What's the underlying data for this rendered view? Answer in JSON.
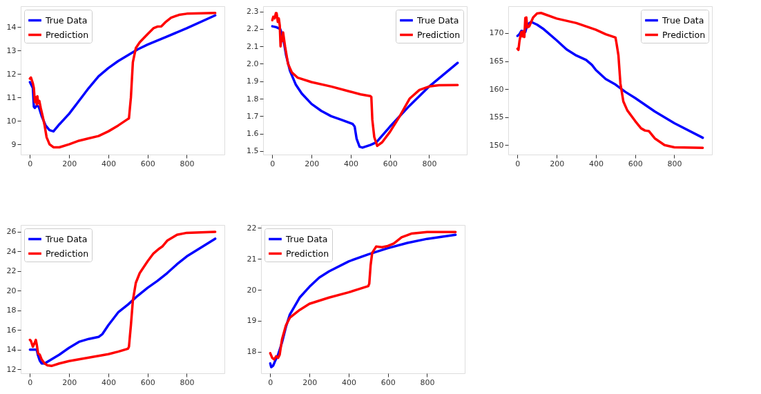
{
  "chart_data": [
    {
      "type": "line",
      "xlim": [
        -47,
        992
      ],
      "xticks": [
        0,
        200,
        400,
        600,
        800
      ],
      "ylim": [
        8.56,
        14.89
      ],
      "yticks": [
        9,
        10,
        11,
        12,
        13,
        14
      ],
      "grid": false,
      "legend": "top left",
      "marker": "none",
      "line_style": "solid",
      "series": [
        {
          "name": "True Data",
          "color": "#0000ff",
          "x": [
            0,
            15,
            20,
            25,
            35,
            45,
            60,
            80,
            100,
            120,
            150,
            200,
            250,
            300,
            350,
            400,
            450,
            500,
            550,
            600,
            700,
            800,
            945
          ],
          "values": [
            11.65,
            11.4,
            10.6,
            10.55,
            10.65,
            10.6,
            10.2,
            9.8,
            9.6,
            9.55,
            9.85,
            10.3,
            10.85,
            11.4,
            11.9,
            12.25,
            12.55,
            12.8,
            13.05,
            13.25,
            13.6,
            13.95,
            14.5
          ]
        },
        {
          "name": "Prediction",
          "color": "#ff0000",
          "x": [
            0,
            5,
            15,
            20,
            25,
            30,
            35,
            38,
            42,
            48,
            55,
            65,
            75,
            85,
            100,
            120,
            150,
            200,
            250,
            300,
            350,
            400,
            450,
            500,
            505,
            515,
            525,
            540,
            560,
            600,
            630,
            650,
            670,
            690,
            720,
            760,
            800,
            945
          ],
          "values": [
            11.8,
            11.85,
            11.6,
            11.4,
            10.8,
            11.0,
            10.7,
            11.05,
            10.75,
            10.85,
            10.55,
            10.2,
            9.8,
            9.3,
            9.0,
            8.87,
            8.87,
            9.0,
            9.15,
            9.25,
            9.35,
            9.55,
            9.8,
            10.08,
            10.1,
            11.0,
            12.5,
            13.1,
            13.35,
            13.7,
            13.95,
            14.02,
            14.03,
            14.2,
            14.4,
            14.52,
            14.57,
            14.6
          ]
        }
      ]
    },
    {
      "type": "line",
      "xlim": [
        -47,
        992
      ],
      "xticks": [
        0,
        200,
        400,
        600,
        800
      ],
      "ylim": [
        1.48,
        2.33
      ],
      "yticks": [
        {
          "value": 1.5,
          "label": "1.5"
        },
        {
          "value": 1.6,
          "label": "1.6"
        },
        {
          "value": 1.7,
          "label": "1.7"
        },
        {
          "value": 1.8,
          "label": "1.8"
        },
        {
          "value": 1.9,
          "label": "1.9"
        },
        {
          "value": 2.0,
          "label": "2.0"
        },
        {
          "value": 2.1,
          "label": "2.1"
        },
        {
          "value": 2.2,
          "label": "2.2"
        },
        {
          "value": 2.3,
          "label": "2.3"
        }
      ],
      "grid": false,
      "legend": "top right",
      "marker": "none",
      "line_style": "solid",
      "series": [
        {
          "name": "True Data",
          "color": "#0000ff",
          "x": [
            0,
            20,
            40,
            55,
            70,
            90,
            120,
            150,
            200,
            250,
            300,
            350,
            410,
            420,
            430,
            445,
            460,
            500,
            530,
            600,
            700,
            800,
            945
          ],
          "values": [
            2.215,
            2.21,
            2.2,
            2.15,
            2.05,
            1.96,
            1.88,
            1.83,
            1.77,
            1.73,
            1.7,
            1.68,
            1.655,
            1.64,
            1.57,
            1.525,
            1.52,
            1.535,
            1.55,
            1.64,
            1.76,
            1.87,
            2.005
          ]
        },
        {
          "name": "Prediction",
          "color": "#ff0000",
          "x": [
            0,
            5,
            12,
            18,
            22,
            28,
            33,
            38,
            42,
            46,
            50,
            55,
            65,
            80,
            100,
            130,
            200,
            300,
            400,
            450,
            500,
            505,
            510,
            520,
            535,
            560,
            600,
            650,
            700,
            750,
            800,
            850,
            945
          ],
          "values": [
            2.25,
            2.27,
            2.26,
            2.29,
            2.29,
            2.24,
            2.26,
            2.22,
            2.1,
            2.15,
            2.13,
            2.18,
            2.1,
            2.0,
            1.95,
            1.92,
            1.895,
            1.87,
            1.84,
            1.825,
            1.815,
            1.81,
            1.68,
            1.58,
            1.53,
            1.55,
            1.61,
            1.7,
            1.8,
            1.85,
            1.87,
            1.877,
            1.878
          ]
        }
      ]
    },
    {
      "type": "line",
      "xlim": [
        -47,
        992
      ],
      "xticks": [
        0,
        200,
        400,
        600,
        800
      ],
      "ylim": [
        148.3,
        174.8
      ],
      "yticks": [
        150,
        155,
        160,
        165,
        170
      ],
      "grid": false,
      "legend": "top right",
      "marker": "none",
      "line_style": "solid",
      "series": [
        {
          "name": "True Data",
          "color": "#0000ff",
          "x": [
            0,
            10,
            20,
            30,
            40,
            50,
            70,
            100,
            130,
            200,
            250,
            300,
            350,
            380,
            400,
            450,
            500,
            550,
            600,
            700,
            800,
            945
          ],
          "values": [
            169.5,
            169.8,
            170.4,
            170.3,
            170.2,
            171.5,
            172,
            171.5,
            170.8,
            168.7,
            167.1,
            166,
            165.2,
            164.3,
            163.4,
            161.8,
            160.8,
            159.5,
            158.4,
            156,
            153.9,
            151.3
          ]
        },
        {
          "name": "Prediction",
          "color": "#ff0000",
          "x": [
            0,
            5,
            10,
            15,
            20,
            25,
            30,
            35,
            40,
            45,
            50,
            60,
            80,
            100,
            120,
            200,
            250,
            300,
            400,
            450,
            500,
            505,
            515,
            525,
            540,
            560,
            600,
            630,
            650,
            670,
            700,
            750,
            800,
            945
          ],
          "values": [
            167.2,
            167,
            168.5,
            169.5,
            170.2,
            169.4,
            170.3,
            169.3,
            172.7,
            172.8,
            171,
            171.2,
            172.8,
            173.5,
            173.6,
            172.6,
            172.2,
            171.8,
            170.6,
            169.8,
            169.2,
            168.2,
            166,
            161,
            157.8,
            156.2,
            154.3,
            153,
            152.6,
            152.5,
            151.2,
            150,
            149.6,
            149.5
          ]
        }
      ]
    },
    {
      "type": "line",
      "xlim": [
        -47,
        992
      ],
      "xticks": [
        0,
        200,
        400,
        600,
        800
      ],
      "ylim": [
        11.6,
        26.7
      ],
      "yticks": [
        12,
        14,
        16,
        18,
        20,
        22,
        24,
        26
      ],
      "grid": false,
      "legend": "top left",
      "marker": "none",
      "line_style": "solid",
      "series": [
        {
          "name": "True Data",
          "color": "#0000ff",
          "x": [
            0,
            20,
            35,
            40,
            50,
            60,
            75,
            100,
            150,
            200,
            250,
            300,
            350,
            370,
            400,
            450,
            500,
            550,
            600,
            650,
            700,
            750,
            800,
            945
          ],
          "values": [
            14,
            14,
            14,
            13.5,
            12.9,
            12.6,
            12.6,
            12.9,
            13.5,
            14.2,
            14.8,
            15.1,
            15.3,
            15.6,
            16.5,
            17.8,
            18.6,
            19.5,
            20.3,
            21,
            21.8,
            22.7,
            23.5,
            25.3
          ]
        },
        {
          "name": "Prediction",
          "color": "#ff0000",
          "x": [
            0,
            5,
            15,
            22,
            30,
            35,
            42,
            50,
            60,
            75,
            90,
            110,
            150,
            200,
            300,
            400,
            450,
            500,
            505,
            515,
            525,
            540,
            560,
            600,
            630,
            660,
            675,
            700,
            750,
            800,
            945
          ],
          "values": [
            15,
            14.9,
            14.3,
            14.6,
            15,
            14.5,
            13.6,
            13.5,
            13,
            12.6,
            12.4,
            12.35,
            12.6,
            12.85,
            13.2,
            13.55,
            13.8,
            14.1,
            14.3,
            16.5,
            19,
            20.8,
            21.8,
            23,
            23.8,
            24.3,
            24.5,
            25.1,
            25.7,
            25.9,
            26
          ]
        }
      ]
    },
    {
      "type": "line",
      "xlim": [
        -47,
        992
      ],
      "xticks": [
        0,
        200,
        400,
        600,
        800
      ],
      "ylim": [
        17.3,
        22.1
      ],
      "yticks": [
        18,
        19,
        20,
        21,
        22
      ],
      "grid": false,
      "legend": "top left",
      "marker": "none",
      "line_style": "solid",
      "series": [
        {
          "name": "True Data",
          "color": "#0000ff",
          "x": [
            0,
            5,
            15,
            25,
            40,
            60,
            80,
            100,
            150,
            200,
            250,
            300,
            400,
            500,
            600,
            700,
            800,
            945
          ],
          "values": [
            17.62,
            17.5,
            17.55,
            17.7,
            17.9,
            18.3,
            18.8,
            19.2,
            19.75,
            20.1,
            20.4,
            20.6,
            20.92,
            21.15,
            21.35,
            21.52,
            21.65,
            21.78
          ]
        },
        {
          "name": "Prediction",
          "color": "#ff0000",
          "x": [
            0,
            10,
            20,
            30,
            40,
            48,
            60,
            80,
            100,
            150,
            200,
            300,
            400,
            450,
            500,
            505,
            512,
            520,
            540,
            570,
            600,
            630,
            670,
            720,
            800,
            945
          ],
          "values": [
            17.95,
            17.8,
            17.75,
            17.85,
            17.8,
            17.9,
            18.4,
            18.85,
            19.1,
            19.35,
            19.55,
            19.75,
            19.92,
            20.02,
            20.12,
            20.2,
            20.8,
            21.2,
            21.4,
            21.38,
            21.42,
            21.5,
            21.7,
            21.82,
            21.87,
            21.87
          ]
        }
      ]
    }
  ]
}
